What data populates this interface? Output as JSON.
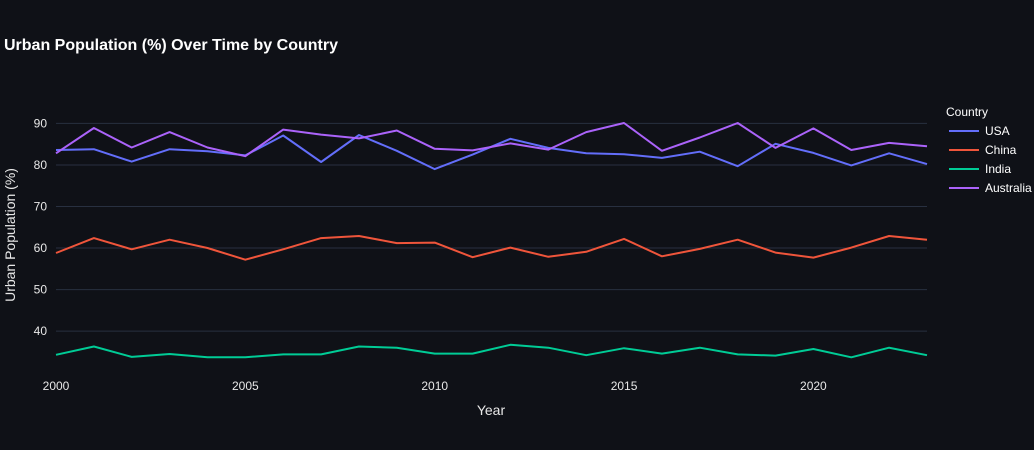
{
  "chart_data": {
    "type": "line",
    "title": "Urban Population (%) Over Time by Country",
    "xlabel": "Year",
    "ylabel": "Urban Population (%)",
    "x": [
      2000,
      2001,
      2002,
      2003,
      2004,
      2005,
      2006,
      2007,
      2008,
      2009,
      2010,
      2011,
      2012,
      2013,
      2014,
      2015,
      2016,
      2017,
      2018,
      2019,
      2020,
      2021,
      2022,
      2023
    ],
    "xlim": [
      2000,
      2023
    ],
    "ylim": [
      30.4,
      96.6
    ],
    "x_ticks": [
      2000,
      2005,
      2010,
      2015,
      2020
    ],
    "y_ticks": [
      40,
      50,
      60,
      70,
      80,
      90
    ],
    "grid": true,
    "legend_title": "Country",
    "legend_position": "right",
    "series": [
      {
        "name": "USA",
        "color": "#636efa",
        "values": [
          83.6,
          83.8,
          80.8,
          83.8,
          83.3,
          82.3,
          87.1,
          80.7,
          87.2,
          83.4,
          79.0,
          82.5,
          86.3,
          84.1,
          82.8,
          82.6,
          81.7,
          83.2,
          79.7,
          85.1,
          82.9,
          79.9,
          82.8,
          80.2
        ]
      },
      {
        "name": "China",
        "color": "#ef553b",
        "values": [
          58.8,
          62.4,
          59.7,
          62.0,
          60.0,
          57.2,
          59.7,
          62.4,
          62.9,
          61.2,
          61.3,
          57.8,
          60.1,
          57.9,
          59.1,
          62.2,
          58.0,
          59.8,
          62.0,
          58.9,
          57.7,
          60.1,
          62.9,
          62.0
        ]
      },
      {
        "name": "India",
        "color": "#00cc96",
        "values": [
          34.3,
          36.3,
          33.8,
          34.5,
          33.7,
          33.7,
          34.4,
          34.4,
          36.3,
          36.0,
          34.6,
          34.6,
          36.7,
          36.0,
          34.2,
          35.9,
          34.6,
          36.0,
          34.4,
          34.1,
          35.7,
          33.7,
          36.0,
          34.2
        ]
      },
      {
        "name": "Australia",
        "color": "#ab63fa",
        "values": [
          82.8,
          88.9,
          84.2,
          87.9,
          84.2,
          82.1,
          88.5,
          87.3,
          86.4,
          88.3,
          83.9,
          83.5,
          85.2,
          83.7,
          87.9,
          90.1,
          83.4,
          86.6,
          90.1,
          84.1,
          88.8,
          83.6,
          85.3,
          84.5
        ]
      }
    ]
  }
}
